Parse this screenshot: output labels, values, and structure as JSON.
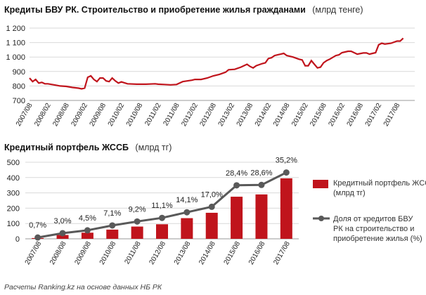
{
  "chart_data": [
    {
      "type": "line",
      "title_bold": "Кредиты БВУ РК. Строительство и приобретение жилья гражданами",
      "title_unit": "(млрд тенге)",
      "ylim": [
        700,
        1200
      ],
      "yticks": [
        "700",
        "800",
        "900",
        "1 000",
        "1 100",
        "1 200"
      ],
      "ytick_values": [
        700,
        800,
        900,
        1000,
        1100,
        1200
      ],
      "xlim": [
        2007.583,
        2017.75
      ],
      "xticks": [
        "2007/08",
        "2008/02",
        "2008/08",
        "2009/02",
        "2009/08",
        "2010/02",
        "2010/08",
        "2011/02",
        "2011/08",
        "2012/02",
        "2012/08",
        "2013/02",
        "2013/08",
        "2014/02",
        "2014/08",
        "2015/02",
        "2015/08",
        "2016/02",
        "2016/08",
        "2017/02",
        "2017/08"
      ],
      "xtick_values": [
        2007.583,
        2008.083,
        2008.583,
        2009.083,
        2009.583,
        2010.083,
        2010.583,
        2011.083,
        2011.583,
        2012.083,
        2012.583,
        2013.083,
        2013.583,
        2014.083,
        2014.583,
        2015.083,
        2015.583,
        2016.083,
        2016.583,
        2017.083,
        2017.583
      ],
      "grid": true,
      "color": "#c0141c",
      "x": [
        2007.583,
        2007.667,
        2007.75,
        2007.833,
        2007.917,
        2008.0,
        2008.083,
        2008.25,
        2008.417,
        2008.583,
        2008.75,
        2008.917,
        2009.0,
        2009.083,
        2009.167,
        2009.25,
        2009.333,
        2009.417,
        2009.5,
        2009.583,
        2009.667,
        2009.75,
        2009.833,
        2009.917,
        2010.0,
        2010.083,
        2010.25,
        2010.5,
        2010.75,
        2011.0,
        2011.083,
        2011.25,
        2011.417,
        2011.583,
        2011.75,
        2012.0,
        2012.083,
        2012.25,
        2012.417,
        2012.583,
        2012.75,
        2012.917,
        2013.0,
        2013.167,
        2013.333,
        2013.5,
        2013.583,
        2013.667,
        2013.75,
        2013.917,
        2014.0,
        2014.083,
        2014.167,
        2014.25,
        2014.333,
        2014.417,
        2014.5,
        2014.583,
        2014.75,
        2014.917,
        2015.0,
        2015.083,
        2015.167,
        2015.25,
        2015.333,
        2015.417,
        2015.5,
        2015.583,
        2015.667,
        2015.75,
        2015.917,
        2016.0,
        2016.083,
        2016.167,
        2016.25,
        2016.333,
        2016.5,
        2016.667,
        2016.75,
        2016.833,
        2016.917,
        2017.0,
        2017.083,
        2017.167,
        2017.25,
        2017.417,
        2017.583,
        2017.667,
        2017.75
      ],
      "y": [
        855,
        830,
        845,
        820,
        825,
        815,
        815,
        808,
        800,
        797,
        790,
        785,
        780,
        785,
        860,
        870,
        845,
        830,
        855,
        855,
        835,
        830,
        855,
        835,
        820,
        828,
        815,
        812,
        812,
        815,
        812,
        810,
        808,
        810,
        830,
        840,
        845,
        845,
        855,
        870,
        880,
        895,
        912,
        915,
        930,
        950,
        935,
        925,
        940,
        955,
        960,
        990,
        995,
        1010,
        1015,
        1020,
        1025,
        1010,
        1000,
        985,
        980,
        940,
        940,
        975,
        950,
        925,
        930,
        960,
        975,
        985,
        1010,
        1015,
        1030,
        1035,
        1040,
        1040,
        1020,
        1028,
        1028,
        1020,
        1025,
        1030,
        1085,
        1095,
        1090,
        1095,
        1110,
        1110,
        1130
      ]
    },
    {
      "type": "bar+line",
      "title": "Кредитный портфель ЖССБ",
      "title_unit": "(млрд тг)",
      "categories": [
        "2007/08",
        "2008/08",
        "2009/08",
        "2010/08",
        "2011/08",
        "2012/08",
        "2013/08",
        "2014/08",
        "2015/08",
        "2016/08",
        "2017/08"
      ],
      "ylim": [
        0,
        500
      ],
      "yticks": [
        "0",
        "100",
        "200",
        "300",
        "400",
        "500"
      ],
      "ytick_values": [
        0,
        100,
        200,
        300,
        400,
        500
      ],
      "legend_position": "right",
      "bar_series": {
        "name": "Кредитный портфель ЖССБ (млрд тг)",
        "color": "#c0141c",
        "values": [
          5,
          25,
          40,
          60,
          80,
          95,
          135,
          170,
          275,
          290,
          395
        ]
      },
      "line_series": {
        "name": "Доля от кредитов БВУ РК на строительство и приобретение жилья (%)",
        "color": "#595959",
        "values": [
          0.7,
          3.0,
          4.5,
          7.1,
          9.2,
          11.1,
          14.1,
          17.0,
          28.4,
          28.6,
          35.2
        ],
        "labels": [
          "0,7%",
          "3,0%",
          "4,5%",
          "7,1%",
          "9,2%",
          "11,1%",
          "14,1%",
          "17,0%",
          "28,4%",
          "28,6%",
          "35,2%"
        ],
        "scale_factor": 12.3
      }
    }
  ],
  "source_note": "Расчеты Ranking.kz на основе данных НБ РК"
}
